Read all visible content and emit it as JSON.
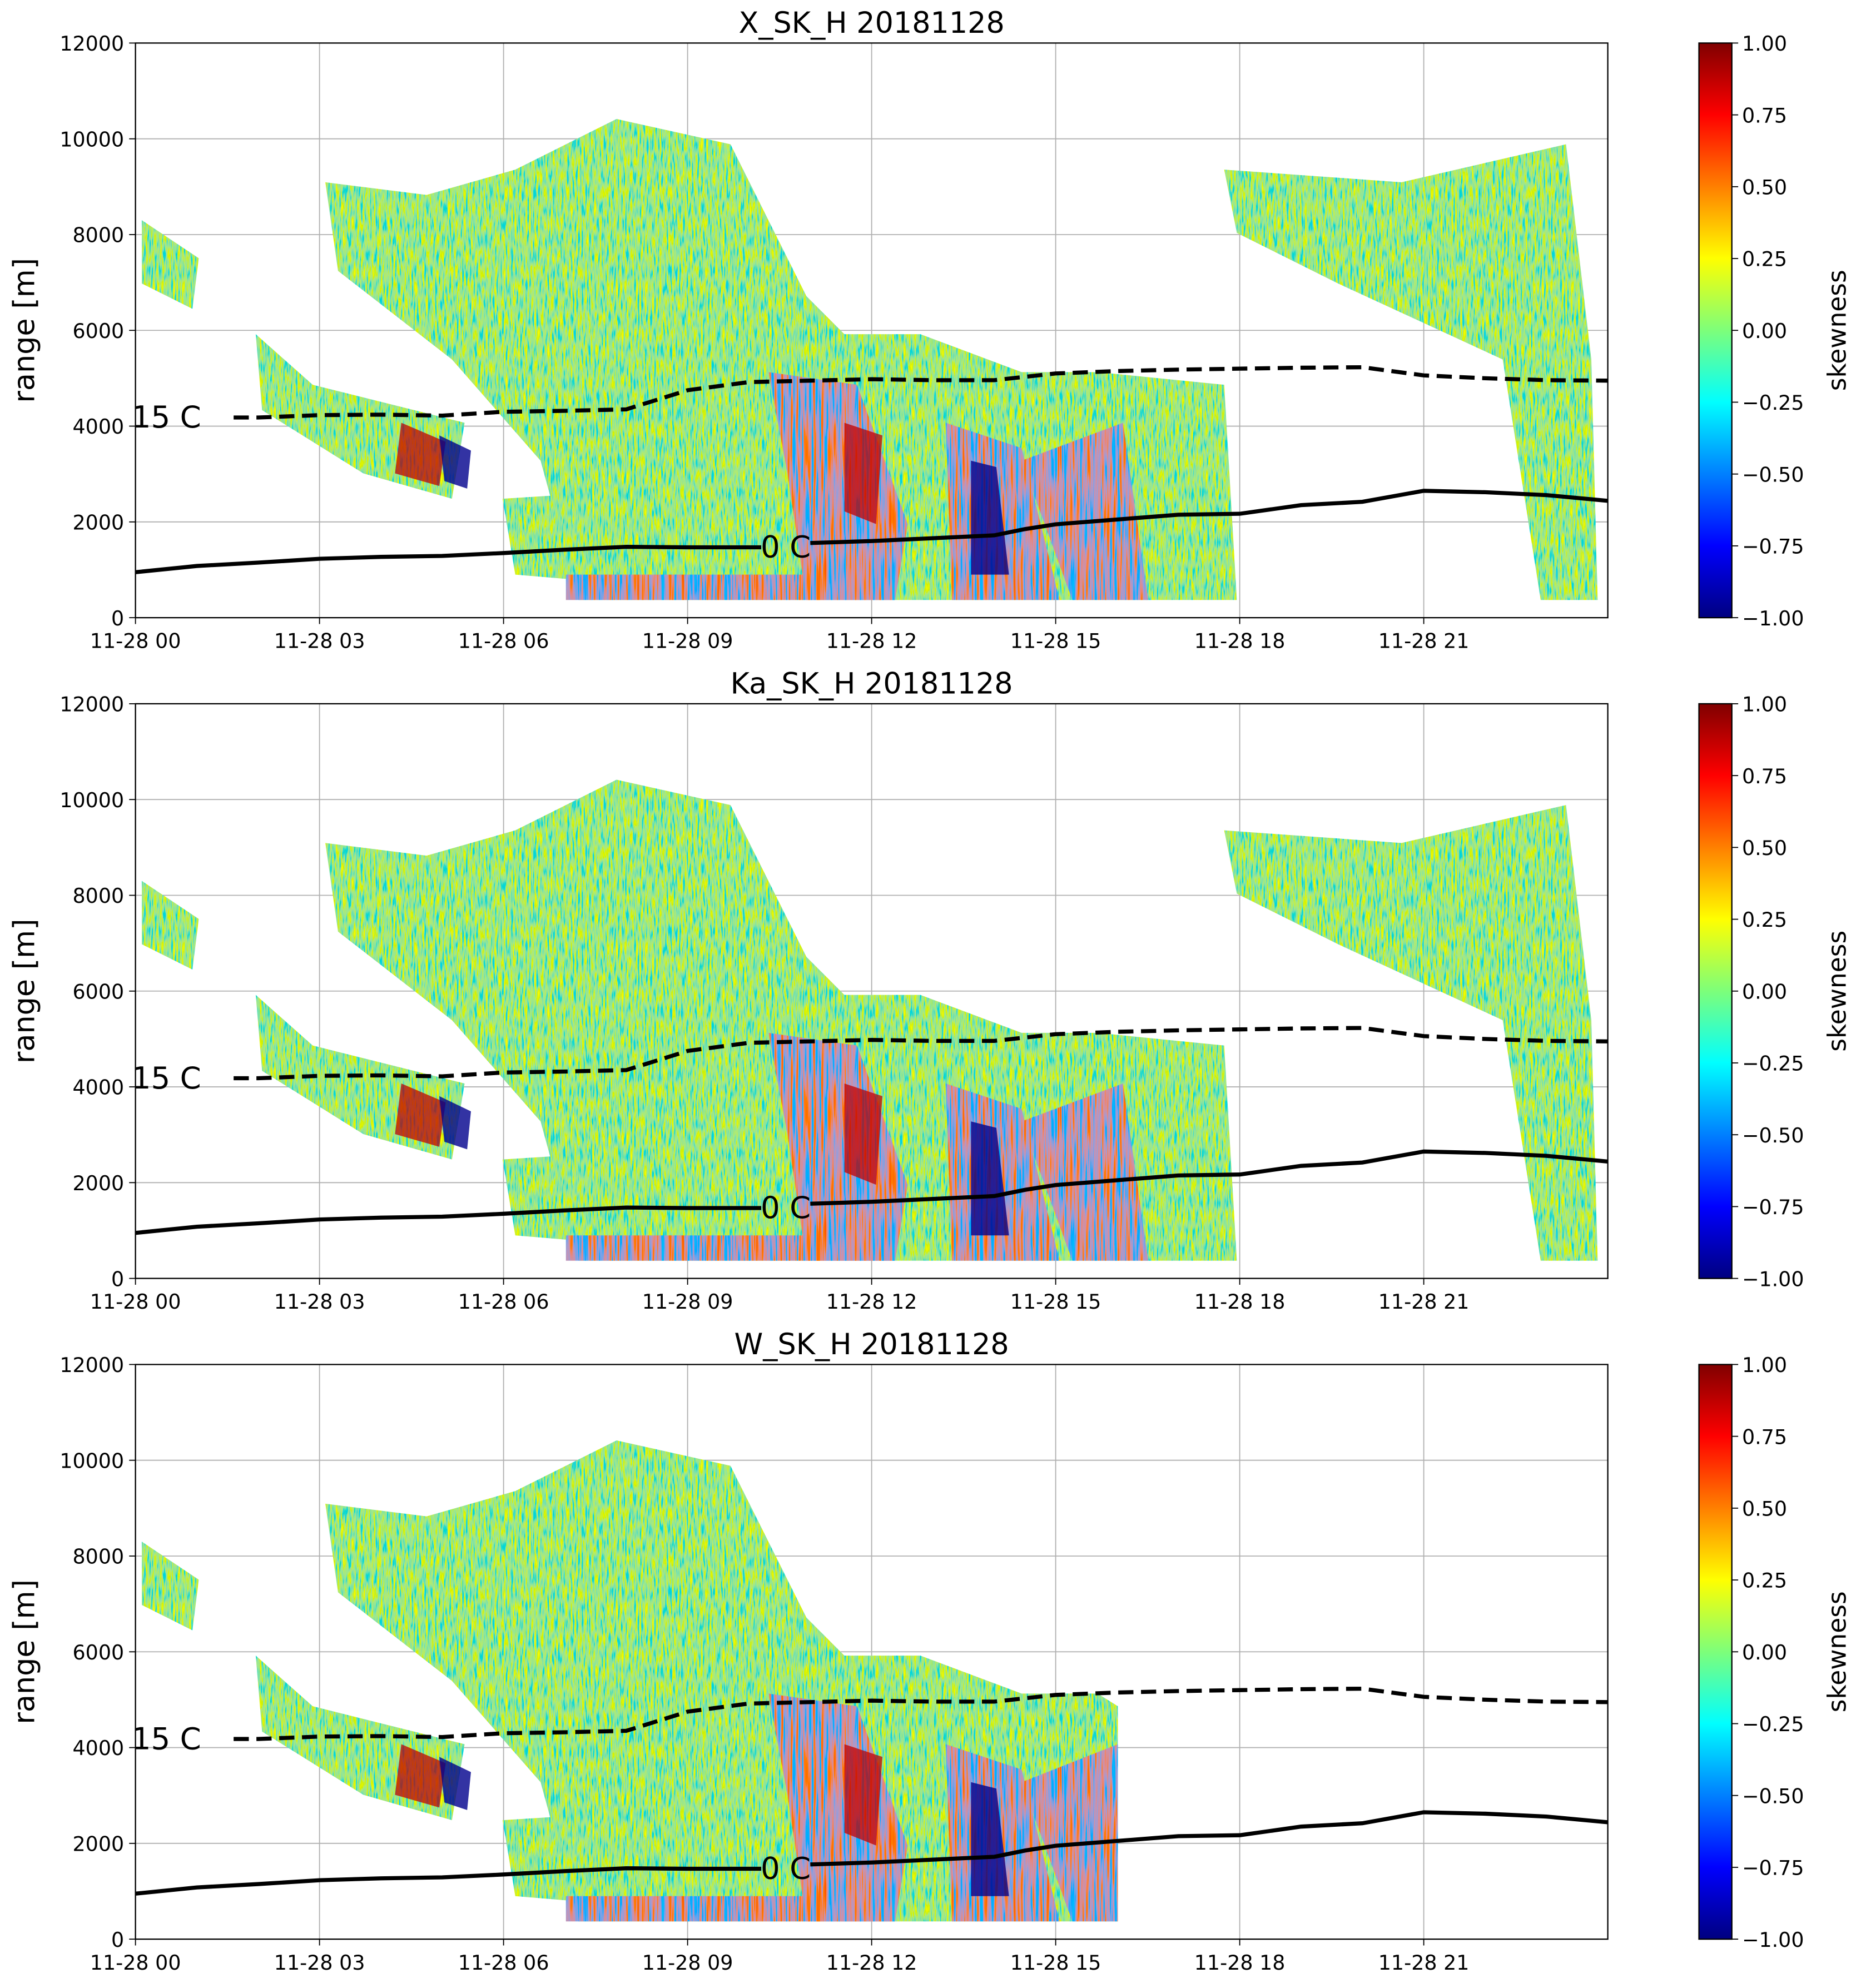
{
  "chart_data": [
    {
      "type": "heatmap",
      "title": "X_SK_H 20181128",
      "ylabel": "range [m]",
      "grid": true,
      "xlim": [
        0,
        24
      ],
      "ylim": [
        0,
        12000
      ],
      "xticks": [
        {
          "value": 0,
          "label": "11-28 00"
        },
        {
          "value": 3,
          "label": "11-28 03"
        },
        {
          "value": 6,
          "label": "11-28 06"
        },
        {
          "value": 9,
          "label": "11-28 09"
        },
        {
          "value": 12,
          "label": "11-28 12"
        },
        {
          "value": 15,
          "label": "11-28 15"
        },
        {
          "value": 18,
          "label": "11-28 18"
        },
        {
          "value": 21,
          "label": "11-28 21"
        }
      ],
      "yticks": [
        0,
        2000,
        4000,
        6000,
        8000,
        10000,
        12000
      ],
      "colorbar": {
        "label": "skewness",
        "colormap": "jet",
        "lim": [
          -1,
          1
        ],
        "ticks": [
          {
            "value": -1,
            "label": "−1.00"
          },
          {
            "value": -0.75,
            "label": "−0.75"
          },
          {
            "value": -0.5,
            "label": "−0.50"
          },
          {
            "value": -0.25,
            "label": "−0.25"
          },
          {
            "value": 0,
            "label": "0.00"
          },
          0.25,
          {
            "value": 0.5,
            "label": "0.50"
          },
          0.75,
          {
            "value": 1,
            "label": "1.00"
          }
        ]
      },
      "isotherms": [
        {
          "label": "15 C",
          "color": "#000000",
          "dashed": true,
          "x": [
            1.6,
            2,
            3,
            4,
            5,
            6,
            7,
            8,
            9,
            10,
            11,
            12,
            13,
            14,
            15,
            16,
            17,
            18,
            19,
            20,
            21,
            22,
            23,
            24
          ],
          "values": [
            4180,
            4180,
            4230,
            4240,
            4220,
            4300,
            4320,
            4350,
            4750,
            4920,
            4950,
            4980,
            4960,
            4960,
            5100,
            5150,
            5180,
            5200,
            5220,
            5230,
            5060,
            5000,
            4960,
            4950
          ]
        },
        {
          "label": "0 C",
          "color": "#000000",
          "dashed": false,
          "x": [
            0,
            1,
            2,
            3,
            4,
            5,
            6,
            7,
            8,
            9,
            10.2,
            10.6,
            11,
            12,
            13,
            14,
            14.5,
            15,
            16,
            17,
            18,
            19,
            20,
            21,
            22,
            23,
            24
          ],
          "values": [
            950,
            1080,
            1150,
            1230,
            1270,
            1290,
            1350,
            1420,
            1480,
            1470,
            1470,
            null,
            1560,
            1600,
            1660,
            1720,
            1850,
            1950,
            2050,
            2150,
            2170,
            2350,
            2420,
            2650,
            2620,
            2560,
            2440
          ]
        }
      ]
    },
    {
      "type": "heatmap",
      "title": "Ka_SK_H 20181128",
      "ylabel": "range [m]",
      "grid": true,
      "xlim": [
        0,
        24
      ],
      "ylim": [
        0,
        12000
      ],
      "xticks": [
        {
          "value": 0,
          "label": "11-28 00"
        },
        {
          "value": 3,
          "label": "11-28 03"
        },
        {
          "value": 6,
          "label": "11-28 06"
        },
        {
          "value": 9,
          "label": "11-28 09"
        },
        {
          "value": 12,
          "label": "11-28 12"
        },
        {
          "value": 15,
          "label": "11-28 15"
        },
        {
          "value": 18,
          "label": "11-28 18"
        },
        {
          "value": 21,
          "label": "11-28 21"
        }
      ],
      "yticks": [
        0,
        2000,
        4000,
        6000,
        8000,
        10000,
        12000
      ],
      "colorbar": {
        "label": "skewness",
        "colormap": "jet",
        "lim": [
          -1,
          1
        ],
        "ticks": [
          {
            "value": -1,
            "label": "−1.00"
          },
          {
            "value": -0.75,
            "label": "−0.75"
          },
          {
            "value": -0.5,
            "label": "−0.50"
          },
          {
            "value": -0.25,
            "label": "−0.25"
          },
          {
            "value": 0,
            "label": "0.00"
          },
          0.25,
          {
            "value": 0.5,
            "label": "0.50"
          },
          0.75,
          {
            "value": 1,
            "label": "1.00"
          }
        ]
      },
      "isotherms": [
        {
          "label": "15 C",
          "color": "#000000",
          "dashed": true,
          "x": [
            1.6,
            2,
            3,
            4,
            5,
            6,
            7,
            8,
            9,
            10,
            11,
            12,
            13,
            14,
            15,
            16,
            17,
            18,
            19,
            20,
            21,
            22,
            23,
            24
          ],
          "values": [
            4180,
            4180,
            4230,
            4240,
            4220,
            4300,
            4320,
            4350,
            4750,
            4920,
            4950,
            4980,
            4960,
            4960,
            5100,
            5150,
            5180,
            5200,
            5220,
            5230,
            5060,
            5000,
            4960,
            4950
          ]
        },
        {
          "label": "0 C",
          "color": "#000000",
          "dashed": false,
          "x": [
            0,
            1,
            2,
            3,
            4,
            5,
            6,
            7,
            8,
            9,
            10.2,
            10.6,
            11,
            12,
            13,
            14,
            14.5,
            15,
            16,
            17,
            18,
            19,
            20,
            21,
            22,
            23,
            24
          ],
          "values": [
            950,
            1080,
            1150,
            1230,
            1270,
            1290,
            1350,
            1420,
            1480,
            1470,
            1470,
            null,
            1560,
            1600,
            1660,
            1720,
            1850,
            1950,
            2050,
            2150,
            2170,
            2350,
            2420,
            2650,
            2620,
            2560,
            2440
          ]
        }
      ]
    },
    {
      "type": "heatmap",
      "title": "W_SK_H 20181128",
      "ylabel": "range [m]",
      "grid": true,
      "xlim": [
        0,
        24
      ],
      "ylim": [
        0,
        12000
      ],
      "xticks": [
        {
          "value": 0,
          "label": "11-28 00"
        },
        {
          "value": 3,
          "label": "11-28 03"
        },
        {
          "value": 6,
          "label": "11-28 06"
        },
        {
          "value": 9,
          "label": "11-28 09"
        },
        {
          "value": 12,
          "label": "11-28 12"
        },
        {
          "value": 15,
          "label": "11-28 15"
        },
        {
          "value": 18,
          "label": "11-28 18"
        },
        {
          "value": 21,
          "label": "11-28 21"
        }
      ],
      "yticks": [
        0,
        2000,
        4000,
        6000,
        8000,
        10000,
        12000
      ],
      "colorbar": {
        "label": "skewness",
        "colormap": "jet",
        "lim": [
          -1,
          1
        ],
        "ticks": [
          {
            "value": -1,
            "label": "−1.00"
          },
          {
            "value": -0.75,
            "label": "−0.75"
          },
          {
            "value": -0.5,
            "label": "−0.50"
          },
          {
            "value": -0.25,
            "label": "−0.25"
          },
          {
            "value": 0,
            "label": "0.00"
          },
          0.25,
          {
            "value": 0.5,
            "label": "0.50"
          },
          0.75,
          {
            "value": 1,
            "label": "1.00"
          }
        ]
      },
      "isotherms": [
        {
          "label": "15 C",
          "color": "#000000",
          "dashed": true,
          "x": [
            1.6,
            2,
            3,
            4,
            5,
            6,
            7,
            8,
            9,
            10,
            11,
            12,
            13,
            14,
            15,
            16,
            17,
            18,
            19,
            20,
            21,
            22,
            23,
            24
          ],
          "values": [
            4180,
            4180,
            4230,
            4240,
            4220,
            4300,
            4320,
            4350,
            4750,
            4920,
            4950,
            4980,
            4960,
            4960,
            5100,
            5150,
            5180,
            5200,
            5220,
            5230,
            5060,
            5000,
            4960,
            4950
          ]
        },
        {
          "label": "0 C",
          "color": "#000000",
          "dashed": false,
          "x": [
            0,
            1,
            2,
            3,
            4,
            5,
            6,
            7,
            8,
            9,
            10.2,
            10.6,
            11,
            12,
            13,
            14,
            14.5,
            15,
            16,
            17,
            18,
            19,
            20,
            21,
            22,
            23,
            24
          ],
          "values": [
            950,
            1080,
            1150,
            1230,
            1270,
            1290,
            1350,
            1420,
            1480,
            1470,
            1470,
            null,
            1560,
            1600,
            1660,
            1720,
            1850,
            1950,
            2050,
            2150,
            2170,
            2350,
            2420,
            2650,
            2620,
            2560,
            2440
          ]
        }
      ]
    }
  ]
}
